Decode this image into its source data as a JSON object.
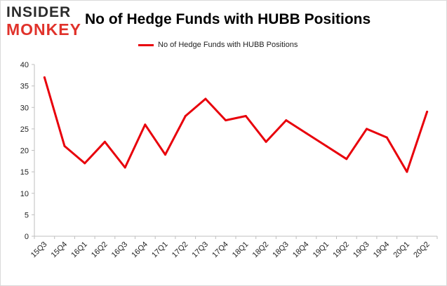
{
  "logo": {
    "line1": "INSIDER",
    "line2": "MONKEY"
  },
  "chart_data": {
    "type": "line",
    "title": "No of Hedge Funds with HUBB Positions",
    "xlabel": "",
    "ylabel": "",
    "categories": [
      "15Q3",
      "15Q4",
      "16Q1",
      "16Q2",
      "16Q3",
      "16Q4",
      "17Q1",
      "17Q2",
      "17Q3",
      "17Q4",
      "18Q1",
      "18Q2",
      "18Q3",
      "18Q4",
      "19Q1",
      "19Q2",
      "19Q3",
      "19Q4",
      "20Q1",
      "20Q2"
    ],
    "series": [
      {
        "name": "No of Hedge Funds with HUBB Positions",
        "values": [
          37,
          21,
          17,
          22,
          16,
          26,
          19,
          28,
          32,
          27,
          28,
          22,
          27,
          24,
          21,
          18,
          25,
          23,
          15,
          29
        ],
        "color": "#e8000b"
      }
    ],
    "ylim": [
      0,
      40
    ],
    "yticks": [
      0,
      5,
      10,
      15,
      20,
      25,
      30,
      35,
      40
    ],
    "grid": false,
    "legend_position": "top-center"
  }
}
